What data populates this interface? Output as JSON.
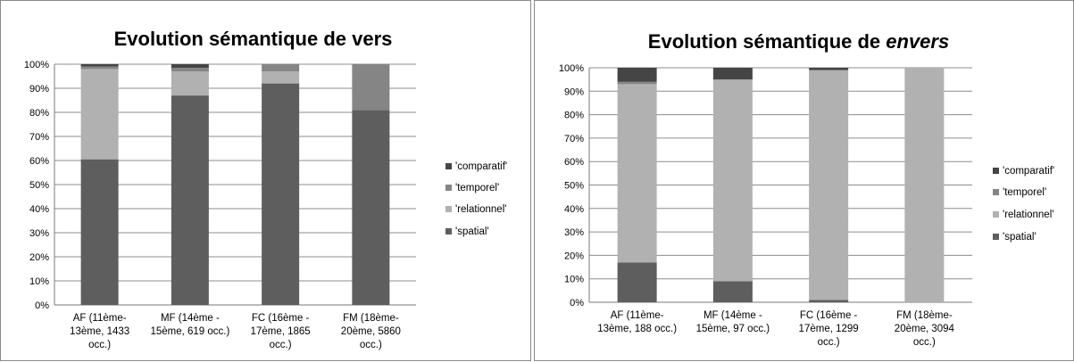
{
  "chart_data": [
    {
      "type": "bar",
      "stacked": true,
      "title": "Evolution sémantique de vers",
      "title_parts": [
        {
          "text": "Evolution sémantique de vers",
          "italic": false
        }
      ],
      "categories": [
        [
          "AF (11ème-",
          "13ème, 1433",
          "occ.)"
        ],
        [
          "MF (14ème -",
          "15ème, 619 occ.)"
        ],
        [
          "FC (16ème -",
          "17ème, 1865",
          "occ.)"
        ],
        [
          "FM (18ème-",
          "20ème, 5860",
          "occ.)"
        ]
      ],
      "ylim": [
        0,
        100
      ],
      "yticks": [
        "0%",
        "10%",
        "20%",
        "30%",
        "40%",
        "50%",
        "60%",
        "70%",
        "80%",
        "90%",
        "100%"
      ],
      "grid": true,
      "legend_position": "right",
      "series": [
        {
          "name": "'spatial'",
          "color": "#5e5e5e",
          "values": [
            60.5,
            87,
            92,
            81
          ]
        },
        {
          "name": "'relationnel'",
          "color": "#b1b1b1",
          "values": [
            37.5,
            10,
            5,
            0
          ]
        },
        {
          "name": "'temporel'",
          "color": "#858585",
          "values": [
            1,
            1.5,
            3,
            19
          ]
        },
        {
          "name": "'comparatif'",
          "color": "#454545",
          "values": [
            1,
            1.5,
            0,
            0
          ]
        }
      ]
    },
    {
      "type": "bar",
      "stacked": true,
      "title": "Evolution sémantique de envers",
      "title_parts": [
        {
          "text": "Evolution sémantique de ",
          "italic": false
        },
        {
          "text": "envers",
          "italic": true
        }
      ],
      "categories": [
        [
          "AF (11ème-",
          "13ème, 188 occ.)"
        ],
        [
          "MF (14ème -",
          "15ème, 97 occ.)"
        ],
        [
          "FC (16ème -",
          "17ème, 1299",
          "occ.)"
        ],
        [
          "FM (18ème-",
          "20ème, 3094",
          "occ.)"
        ]
      ],
      "ylim": [
        0,
        100
      ],
      "yticks": [
        "0%",
        "10%",
        "20%",
        "30%",
        "40%",
        "50%",
        "60%",
        "70%",
        "80%",
        "90%",
        "100%"
      ],
      "grid": true,
      "legend_position": "right",
      "series": [
        {
          "name": "'spatial'",
          "color": "#5e5e5e",
          "values": [
            17,
            9,
            1,
            0
          ]
        },
        {
          "name": "'relationnel'",
          "color": "#b1b1b1",
          "values": [
            76,
            86,
            98,
            100
          ]
        },
        {
          "name": "'temporel'",
          "color": "#858585",
          "values": [
            1,
            0,
            0,
            0
          ]
        },
        {
          "name": "'comparatif'",
          "color": "#454545",
          "values": [
            6,
            5,
            1,
            0
          ]
        }
      ]
    }
  ]
}
